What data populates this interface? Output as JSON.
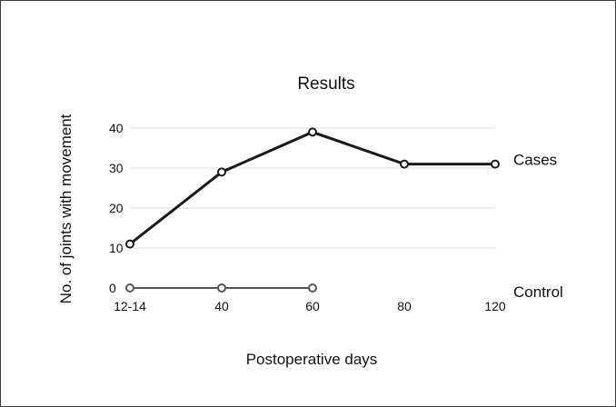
{
  "chart_data": {
    "type": "line",
    "title": "Results",
    "xlabel": "Postoperative days",
    "ylabel": "No. of joints with movement",
    "categories": [
      "12-14",
      "40",
      "60",
      "80",
      "120"
    ],
    "yticks": [
      0,
      10,
      20,
      30,
      40
    ],
    "ylim": [
      0,
      40
    ],
    "grid": true,
    "legend": "series labels at right end of lines",
    "series": [
      {
        "name": "Cases",
        "values": [
          11,
          29,
          39,
          31,
          31
        ]
      },
      {
        "name": "Control",
        "values": [
          0,
          0,
          0,
          null,
          null
        ]
      }
    ],
    "colors": {
      "line": "#1a1a1a",
      "marker_fill": "#ffffff",
      "grid": "#d9d9d9",
      "control_line": "#555555"
    }
  }
}
